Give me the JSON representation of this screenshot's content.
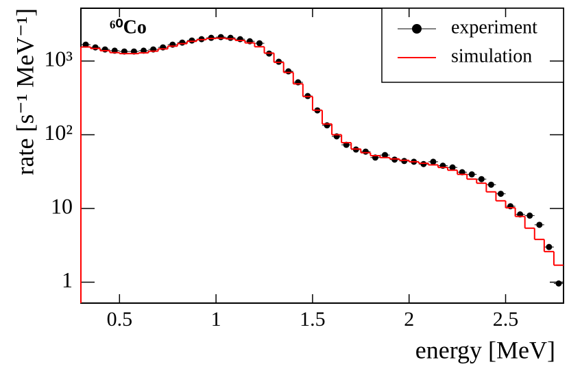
{
  "chart_data": {
    "type": "histogram",
    "title": "⁶⁰Co",
    "x_label": "energy [MeV]",
    "y_label": "rate [s⁻¹ MeV⁻¹]",
    "xlim": [
      0.3,
      2.8
    ],
    "ylim": [
      0.52,
      5200
    ],
    "ylog": true,
    "grid": false,
    "legend": "upper right",
    "xticks": [
      0.5,
      1,
      1.5,
      2,
      2.5
    ],
    "yticks": [
      1,
      10,
      {
        "value": 100,
        "label": "10²"
      },
      {
        "value": 1000,
        "label": "10³"
      }
    ],
    "series": [
      {
        "name": "experiment",
        "color": "#000000",
        "x": [
          0.325,
          0.375,
          0.425,
          0.475,
          0.525,
          0.575,
          0.625,
          0.675,
          0.725,
          0.775,
          0.825,
          0.875,
          0.925,
          0.975,
          1.025,
          1.075,
          1.125,
          1.175,
          1.225,
          1.275,
          1.325,
          1.375,
          1.425,
          1.475,
          1.525,
          1.575,
          1.625,
          1.675,
          1.725,
          1.775,
          1.825,
          1.875,
          1.925,
          1.975,
          2.025,
          2.075,
          2.125,
          2.175,
          2.225,
          2.275,
          2.325,
          2.375,
          2.425,
          2.475,
          2.525,
          2.575,
          2.625,
          2.675,
          2.725,
          2.775
        ],
        "values": [
          1667,
          1530,
          1435,
          1380,
          1346,
          1346,
          1380,
          1435,
          1530,
          1667,
          1778,
          1896,
          1978,
          2064,
          2110,
          2064,
          1978,
          1853,
          1740,
          1263,
          977,
          724,
          514,
          335,
          214,
          134,
          95,
          73,
          63,
          59,
          49,
          53,
          46,
          44,
          43,
          40,
          43,
          38,
          36,
          31,
          29,
          25,
          21,
          15.8,
          10.7,
          8.3,
          8.0,
          6.0,
          3.0,
          0.96
        ]
      },
      {
        "name": "simulation",
        "color": "#ff0000",
        "bins": [
          0.3,
          0.35,
          0.4,
          0.45,
          0.5,
          0.55,
          0.6,
          0.65,
          0.7,
          0.75,
          0.8,
          0.85,
          0.9,
          0.95,
          1.0,
          1.05,
          1.1,
          1.15,
          1.2,
          1.25,
          1.3,
          1.35,
          1.4,
          1.45,
          1.5,
          1.55,
          1.6,
          1.65,
          1.7,
          1.75,
          1.8,
          1.85,
          1.9,
          1.95,
          2.0,
          2.05,
          2.1,
          2.15,
          2.2,
          2.25,
          2.3,
          2.35,
          2.4,
          2.45,
          2.5,
          2.55,
          2.6,
          2.65,
          2.7,
          2.75,
          2.8
        ],
        "values": [
          1550,
          1480,
          1380,
          1300,
          1260,
          1260,
          1290,
          1360,
          1460,
          1590,
          1720,
          1850,
          1950,
          2020,
          2040,
          2000,
          1900,
          1760,
          1560,
          1280,
          960,
          700,
          490,
          330,
          215,
          140,
          100,
          78,
          64,
          57,
          52,
          49,
          47,
          45,
          43,
          41,
          39,
          36,
          33,
          29,
          25,
          22,
          16.8,
          12.7,
          10.2,
          7.8,
          5.4,
          3.8,
          2.6,
          1.7
        ]
      }
    ]
  }
}
